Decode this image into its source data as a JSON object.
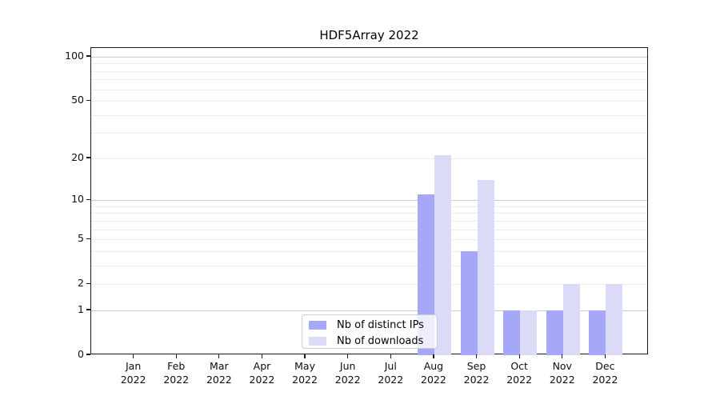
{
  "chart_data": {
    "type": "bar",
    "title": "HDF5Array 2022",
    "months": [
      "Jan",
      "Feb",
      "Mar",
      "Apr",
      "May",
      "Jun",
      "Jul",
      "Aug",
      "Sep",
      "Oct",
      "Nov",
      "Dec"
    ],
    "year_label": "2022",
    "series": [
      {
        "name": "Nb of distinct IPs",
        "color": "#a7a7f8",
        "values": [
          0,
          0,
          0,
          0,
          0,
          0,
          0,
          11,
          4,
          1,
          1,
          1
        ]
      },
      {
        "name": "Nb of downloads",
        "color": "#dbdbf8",
        "values": [
          0,
          0,
          0,
          0,
          0,
          0,
          0,
          21,
          14,
          1,
          2,
          2
        ]
      }
    ],
    "y_scale": "log10(1+x)",
    "y_tick_values": [
      0,
      1,
      2,
      5,
      10,
      20,
      50,
      100
    ],
    "y_major_gridlines": [
      1,
      10,
      100
    ],
    "y_minor_gridlines": [
      2,
      3,
      4,
      5,
      6,
      7,
      8,
      9,
      20,
      30,
      40,
      50,
      60,
      70,
      80,
      90
    ],
    "ylim": [
      0,
      115
    ],
    "grid": "horizontal-only",
    "legend_position": "inside-bottom-center",
    "colors": {
      "axis": "#1a1a1a",
      "major_grid": "#cccccc",
      "minor_grid": "#ededed",
      "background": "#ffffff"
    }
  }
}
